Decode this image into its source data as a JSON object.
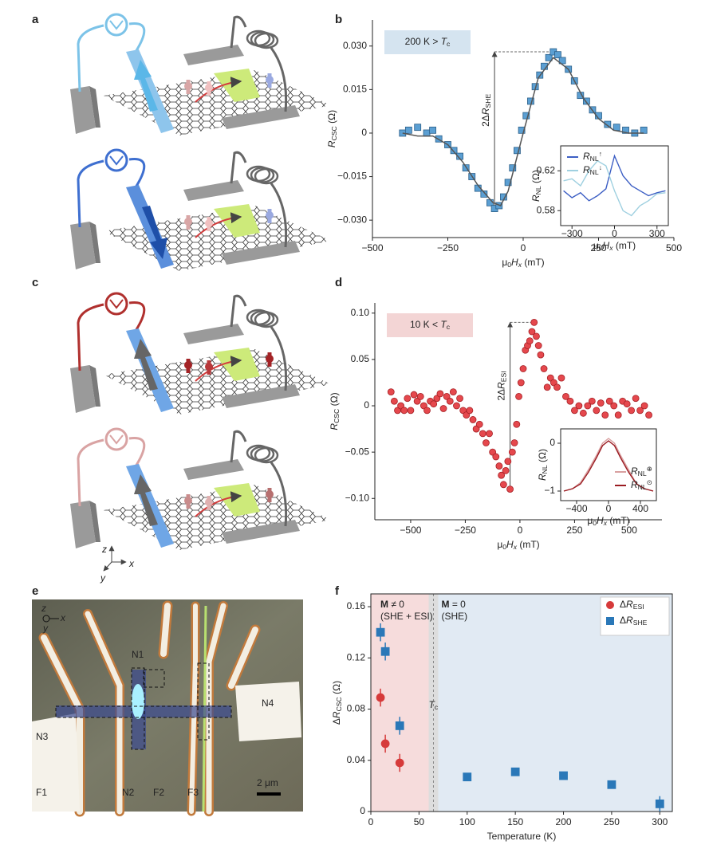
{
  "panel_letters": [
    "a",
    "b",
    "c",
    "d",
    "e",
    "f"
  ],
  "schematic_axes": [
    "z",
    "x",
    "y"
  ],
  "micrograph": {
    "labels": [
      "N1",
      "N2",
      "N3",
      "N4",
      "F1",
      "F2",
      "F3"
    ],
    "scale_bar": "2 μm",
    "axes": [
      "z",
      "x",
      "y"
    ]
  },
  "chart_data": [
    {
      "type": "scatter",
      "xlabel": [
        {
          "text": "μ"
        },
        {
          "text": "0",
          "style": "sub"
        },
        {
          "text": "H",
          "style": "italic"
        },
        {
          "text": "x",
          "style": "italic sub"
        },
        {
          "text": " (mT)"
        }
      ],
      "ylabel": [
        {
          "text": "R",
          "style": "italic"
        },
        {
          "text": "CSC",
          "style": "sub"
        },
        {
          "text": " (Ω)"
        }
      ],
      "annotation": [
        {
          "text": "200 K > "
        },
        {
          "text": "T",
          "style": "italic"
        },
        {
          "text": "c",
          "style": "sub"
        }
      ],
      "annotation_color": "#d5e4f0",
      "arrow_label": [
        {
          "text": "2Δ"
        },
        {
          "text": "R",
          "style": "italic"
        },
        {
          "text": "SHE",
          "style": "sub"
        }
      ],
      "xlim": [
        -500,
        500
      ],
      "ylim": [
        -0.036,
        0.039
      ],
      "xticks": [
        {
          "value": -500,
          "label": "−500"
        },
        {
          "value": -250,
          "label": "−250"
        },
        0,
        250,
        500
      ],
      "yticks": [
        {
          "value": 0.03,
          "label": "0.030"
        },
        0.015,
        0,
        {
          "value": -0.015,
          "label": "−0.015"
        },
        {
          "value": -0.03,
          "label": "−0.030"
        }
      ],
      "series": [
        {
          "marker": "square",
          "color": "#5b9fd3",
          "edge": "#2c5f88",
          "x": [
            -400,
            -380,
            -350,
            -320,
            -300,
            -280,
            -250,
            -230,
            -210,
            -190,
            -170,
            -150,
            -130,
            -110,
            -95,
            -80,
            -65,
            -50,
            -35,
            -20,
            -5,
            10,
            25,
            40,
            55,
            70,
            85,
            100,
            115,
            130,
            150,
            170,
            190,
            210,
            230,
            250,
            280,
            310,
            340,
            370,
            400
          ],
          "values": [
            0,
            0.001,
            0.002,
            0,
            0.001,
            -0.002,
            -0.004,
            -0.006,
            -0.008,
            -0.012,
            -0.015,
            -0.019,
            -0.021,
            -0.024,
            -0.026,
            -0.025,
            -0.022,
            -0.017,
            -0.012,
            -0.006,
            0.001,
            0.006,
            0.011,
            0.016,
            0.02,
            0.023,
            0.026,
            0.028,
            0.027,
            0.025,
            0.022,
            0.018,
            0.013,
            0.011,
            0.008,
            0.006,
            0.003,
            0.002,
            0.001,
            0,
            0.001
          ]
        },
        {
          "marker": "line",
          "color": "#555555",
          "x": [
            -400,
            -350,
            -300,
            -250,
            -200,
            -150,
            -100,
            -75,
            -50,
            0,
            50,
            100,
            150,
            200,
            250,
            300,
            350,
            400
          ],
          "values": [
            0,
            -0.001,
            -0.001,
            -0.004,
            -0.01,
            -0.018,
            -0.024,
            -0.025,
            -0.02,
            0,
            0.019,
            0.026,
            0.022,
            0.012,
            0.005,
            0.001,
            0,
            0
          ]
        }
      ]
    },
    {
      "type": "line",
      "xlabel": [
        {
          "text": "μ"
        },
        {
          "text": "0",
          "style": "sub"
        },
        {
          "text": "H",
          "style": "italic"
        },
        {
          "text": "x",
          "style": "italic sub"
        },
        {
          "text": " (mT)"
        }
      ],
      "ylabel": [
        {
          "text": "R",
          "style": "italic"
        },
        {
          "text": "NL",
          "style": "sub"
        },
        {
          "text": " (Ω)"
        }
      ],
      "xlim": [
        -380,
        380
      ],
      "ylim": [
        0.565,
        0.645
      ],
      "xticks": [
        {
          "value": -300,
          "label": "−300"
        },
        0,
        300
      ],
      "yticks": [
        0.62,
        0.58
      ],
      "legend": "upper left",
      "series": [
        {
          "name": [
            {
              "text": "R",
              "style": "italic"
            },
            {
              "text": "NL",
              "style": "sub"
            },
            {
              "text": "↑",
              "style": "sup"
            }
          ],
          "marker": "line",
          "color": "#3d5fc4",
          "x": [
            -360,
            -300,
            -240,
            -180,
            -120,
            -60,
            0,
            60,
            120,
            180,
            240,
            300,
            360
          ],
          "values": [
            0.6,
            0.593,
            0.598,
            0.59,
            0.595,
            0.602,
            0.635,
            0.615,
            0.605,
            0.6,
            0.595,
            0.598,
            0.6
          ]
        },
        {
          "name": [
            {
              "text": "R",
              "style": "italic"
            },
            {
              "text": "NL",
              "style": "sub"
            },
            {
              "text": "↓",
              "style": "sup"
            }
          ],
          "marker": "line",
          "color": "#9fd0e0",
          "x": [
            -360,
            -300,
            -240,
            -180,
            -120,
            -60,
            0,
            60,
            120,
            180,
            240,
            300,
            360
          ],
          "values": [
            0.61,
            0.612,
            0.605,
            0.62,
            0.63,
            0.625,
            0.6,
            0.58,
            0.575,
            0.585,
            0.59,
            0.597,
            0.598
          ]
        }
      ]
    },
    {
      "type": "scatter",
      "xlabel": [
        {
          "text": "μ"
        },
        {
          "text": "0",
          "style": "sub"
        },
        {
          "text": "H",
          "style": "italic"
        },
        {
          "text": "x",
          "style": "italic sub"
        },
        {
          "text": " (mT)"
        }
      ],
      "ylabel": [
        {
          "text": "R",
          "style": "italic"
        },
        {
          "text": "CSC",
          "style": "sub"
        },
        {
          "text": " (Ω)"
        }
      ],
      "annotation": [
        {
          "text": "10 K < "
        },
        {
          "text": "T",
          "style": "italic"
        },
        {
          "text": "c",
          "style": "sub"
        }
      ],
      "annotation_color": "#f3d5d5",
      "arrow_label": [
        {
          "text": "2Δ"
        },
        {
          "text": "R",
          "style": "italic"
        },
        {
          "text": "ESI",
          "style": "sub"
        }
      ],
      "xlim": [
        -664,
        650
      ],
      "ylim": [
        -0.123,
        0.111
      ],
      "xticks": [
        {
          "value": -500,
          "label": "−500"
        },
        {
          "value": -250,
          "label": "−250"
        },
        0,
        250,
        500
      ],
      "yticks": [
        {
          "value": 0.1,
          "label": "0.10"
        },
        0.05,
        0,
        {
          "value": -0.05,
          "label": "−0.05"
        },
        {
          "value": -0.1,
          "label": "−0.10"
        }
      ],
      "series": [
        {
          "marker": "circle",
          "color": "#e5484d",
          "edge": "#a52025",
          "x": [
            -590,
            -575,
            -560,
            -545,
            -530,
            -515,
            -500,
            -485,
            -470,
            -455,
            -440,
            -425,
            -410,
            -395,
            -380,
            -365,
            -350,
            -335,
            -320,
            -305,
            -290,
            -275,
            -260,
            -245,
            -230,
            -215,
            -200,
            -185,
            -170,
            -155,
            -140,
            -125,
            -110,
            -95,
            -85,
            -75,
            -65,
            -55,
            -45,
            -35,
            -25,
            -15,
            -5,
            5,
            15,
            25,
            35,
            45,
            55,
            65,
            75,
            85,
            95,
            110,
            125,
            140,
            155,
            170,
            190,
            210,
            230,
            250,
            270,
            290,
            310,
            330,
            350,
            370,
            390,
            410,
            430,
            450,
            470,
            490,
            510,
            530,
            550,
            570,
            590
          ],
          "values": [
            0.015,
            0.005,
            -0.005,
            0,
            -0.005,
            0.008,
            -0.005,
            0.012,
            0.005,
            0.01,
            0,
            -0.005,
            0.005,
            0.002,
            0.008,
            0.013,
            -0.003,
            0.01,
            0.005,
            0.015,
            0,
            0.008,
            -0.005,
            -0.01,
            -0.005,
            -0.015,
            -0.025,
            -0.02,
            -0.03,
            -0.04,
            -0.03,
            -0.05,
            -0.055,
            -0.065,
            -0.075,
            -0.085,
            -0.07,
            -0.06,
            -0.09,
            -0.05,
            -0.04,
            -0.02,
            0.01,
            0.025,
            0.04,
            0.06,
            0.065,
            0.07,
            0.08,
            0.09,
            0.075,
            0.065,
            0.055,
            0.04,
            0.02,
            0.03,
            0.025,
            0.02,
            0.03,
            0.01,
            0.005,
            -0.005,
            0,
            -0.008,
            0,
            0.005,
            -0.005,
            0.003,
            -0.01,
            0.005,
            0,
            -0.01,
            0.005,
            0.002,
            -0.005,
            0.008,
            -0.005,
            0,
            -0.01
          ]
        }
      ]
    },
    {
      "type": "line",
      "xlabel": [
        {
          "text": "μ"
        },
        {
          "text": "0",
          "style": "sub"
        },
        {
          "text": "H",
          "style": "italic"
        },
        {
          "text": "x",
          "style": "italic sub"
        },
        {
          "text": " (mT)"
        }
      ],
      "ylabel": [
        {
          "text": "R",
          "style": "italic"
        },
        {
          "text": "NL",
          "style": "sub"
        },
        {
          "text": " (Ω)"
        }
      ],
      "xlim": [
        -600,
        600
      ],
      "ylim": [
        -1.2,
        0.3
      ],
      "xticks": [
        {
          "value": -400,
          "label": "−400"
        },
        0,
        400
      ],
      "yticks": [
        0,
        {
          "value": -1,
          "label": "−1"
        }
      ],
      "legend": "lower right",
      "series": [
        {
          "name": [
            {
              "text": "R",
              "style": "italic"
            },
            {
              "text": "NL",
              "style": "sub"
            },
            {
              "text": "⊕",
              "style": "sup"
            }
          ],
          "marker": "line",
          "color": "#d9a0a0",
          "x": [
            -560,
            -450,
            -350,
            -250,
            -150,
            -75,
            0,
            75,
            150,
            250,
            350,
            450,
            560
          ],
          "values": [
            -1,
            -0.95,
            -0.82,
            -0.55,
            -0.25,
            0,
            0.1,
            0,
            -0.25,
            -0.55,
            -0.85,
            -0.95,
            -1
          ]
        },
        {
          "name": [
            {
              "text": "R",
              "style": "italic"
            },
            {
              "text": "NL",
              "style": "sub"
            },
            {
              "text": "⊙",
              "style": "sup"
            }
          ],
          "marker": "line",
          "color": "#9b1c22",
          "x": [
            -560,
            -450,
            -350,
            -250,
            -150,
            -75,
            0,
            75,
            150,
            250,
            350,
            450,
            560
          ],
          "values": [
            -1,
            -0.95,
            -0.85,
            -0.6,
            -0.3,
            -0.05,
            0.05,
            -0.05,
            -0.3,
            -0.6,
            -0.85,
            -0.95,
            -1
          ]
        }
      ]
    },
    {
      "type": "scatter",
      "xlabel": "Temperature (K)",
      "ylabel": [
        {
          "text": "Δ"
        },
        {
          "text": "R",
          "style": "italic"
        },
        {
          "text": "CSC",
          "style": "sub"
        },
        {
          "text": " (Ω)"
        }
      ],
      "xlim": [
        0,
        313
      ],
      "ylim": [
        0,
        0.17
      ],
      "xticks": [
        0,
        50,
        100,
        150,
        200,
        250,
        300
      ],
      "yticks": [
        0,
        0.04,
        0.08,
        0.12,
        0.16
      ],
      "tc_line": 65,
      "tc_label": [
        {
          "text": "T",
          "style": "italic"
        },
        {
          "text": "c",
          "style": "sub"
        }
      ],
      "region_colors": [
        "#f6dcdc",
        "#e1eaf3"
      ],
      "region_labels": [
        [
          {
            "text": "M",
            "style": "bold"
          },
          {
            "text": " ≠ 0"
          }
        ],
        [
          {
            "text": "(SHE + ESI)"
          }
        ],
        [
          {
            "text": "M",
            "style": "bold"
          },
          {
            "text": " = 0"
          }
        ],
        [
          {
            "text": "(SHE)"
          }
        ]
      ],
      "legend": "upper right",
      "series": [
        {
          "name": [
            {
              "text": "Δ"
            },
            {
              "text": "R",
              "style": "italic"
            },
            {
              "text": "ESI",
              "style": "sub"
            }
          ],
          "marker": "circle",
          "color": "#d63a3a",
          "edge": "#d63a3a",
          "x": [
            10,
            15,
            30
          ],
          "values": [
            0.089,
            0.053,
            0.038
          ],
          "errors": [
            0.007,
            0.007,
            0.007
          ]
        },
        {
          "name": [
            {
              "text": "Δ"
            },
            {
              "text": "R",
              "style": "italic"
            },
            {
              "text": "SHE",
              "style": "sub"
            }
          ],
          "marker": "square",
          "color": "#2a78b8",
          "edge": "#2a78b8",
          "x": [
            10,
            15,
            30,
            100,
            150,
            200,
            250,
            300
          ],
          "values": [
            0.14,
            0.125,
            0.067,
            0.027,
            0.031,
            0.028,
            0.021,
            0.006
          ],
          "errors": [
            0.007,
            0.007,
            0.007,
            0.003,
            0.003,
            0.003,
            0.003,
            0.006
          ]
        }
      ]
    }
  ]
}
